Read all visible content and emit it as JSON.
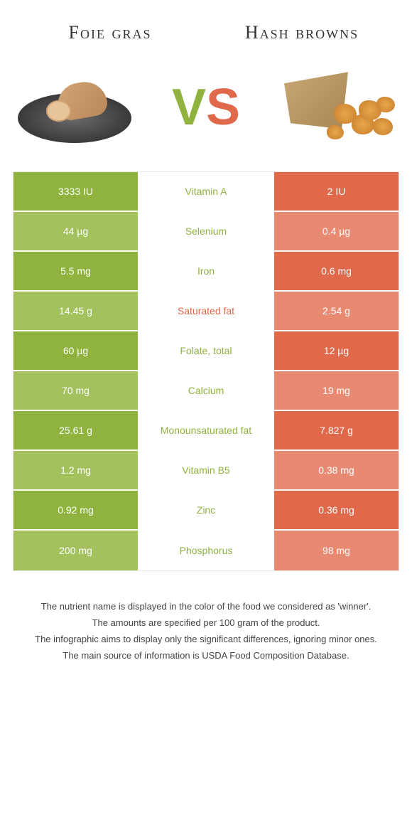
{
  "header": {
    "left_title": "Foie gras",
    "right_title": "Hash browns"
  },
  "vs": {
    "v": "V",
    "s": "S"
  },
  "colors": {
    "left_main": "#8fb33e",
    "left_dim": "#a3c25e",
    "right_main": "#e0684b",
    "right_dim": "#e88a72",
    "winner_left": "#8fb33e",
    "winner_right": "#e0684b"
  },
  "rows": [
    {
      "left": "3333 IU",
      "mid": "Vitamin A",
      "right": "2 IU",
      "winner": "left"
    },
    {
      "left": "44 µg",
      "mid": "Selenium",
      "right": "0.4 µg",
      "winner": "left"
    },
    {
      "left": "5.5 mg",
      "mid": "Iron",
      "right": "0.6 mg",
      "winner": "left"
    },
    {
      "left": "14.45 g",
      "mid": "Saturated fat",
      "right": "2.54 g",
      "winner": "right"
    },
    {
      "left": "60 µg",
      "mid": "Folate, total",
      "right": "12 µg",
      "winner": "left"
    },
    {
      "left": "70 mg",
      "mid": "Calcium",
      "right": "19 mg",
      "winner": "left"
    },
    {
      "left": "25.61 g",
      "mid": "Monounsaturated fat",
      "right": "7.827 g",
      "winner": "left"
    },
    {
      "left": "1.2 mg",
      "mid": "Vitamin B5",
      "right": "0.38 mg",
      "winner": "left"
    },
    {
      "left": "0.92 mg",
      "mid": "Zinc",
      "right": "0.36 mg",
      "winner": "left"
    },
    {
      "left": "200 mg",
      "mid": "Phosphorus",
      "right": "98 mg",
      "winner": "left"
    }
  ],
  "footer": {
    "line1": "The nutrient name is displayed in the color of the food we considered as 'winner'.",
    "line2": "The amounts are specified per 100 gram of the product.",
    "line3": "The infographic aims to display only the significant differences, ignoring minor ones.",
    "line4": "The main source of information is USDA Food Composition Database."
  }
}
